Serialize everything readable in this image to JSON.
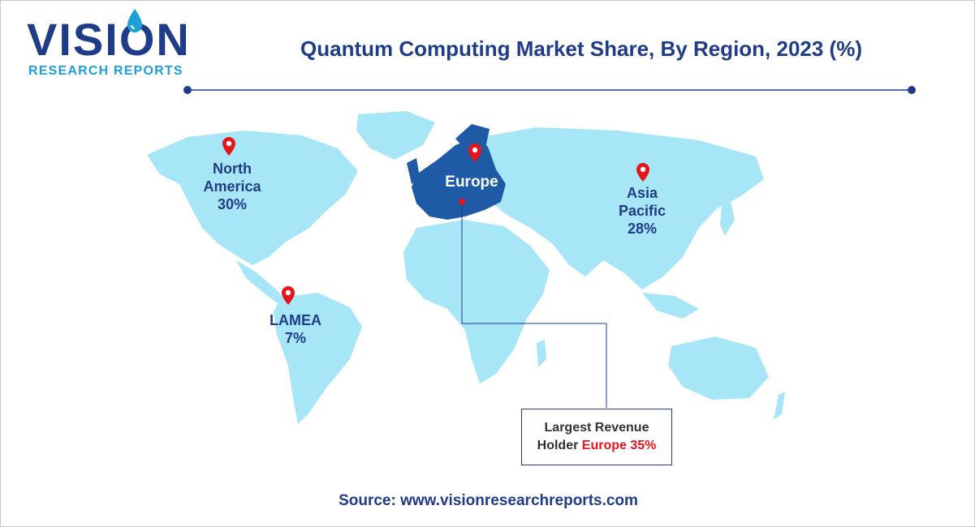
{
  "brand": {
    "name": "VISION",
    "tagline": "RESEARCH REPORTS",
    "primary_color": "#1f3c88",
    "accent_color": "#1f9fd8"
  },
  "title": "Quantum Computing Market Share, By Region, 2023 (%)",
  "map": {
    "land_color": "#a6e6f7",
    "highlight_color": "#1f5aa6",
    "pin_color": "#e8141b",
    "pin_icon": "map-pin-icon",
    "regions": [
      {
        "name": "North America",
        "line1": "North",
        "line2": "America",
        "share": "30%"
      },
      {
        "name": "Europe",
        "line1": "Europe",
        "share": "35%"
      },
      {
        "name": "Asia Pacific",
        "line1": "Asia",
        "line2": "Pacific",
        "share": "28%"
      },
      {
        "name": "LAMEA",
        "line1": "LAMEA",
        "share": "7%"
      }
    ]
  },
  "callout": {
    "line1": "Largest Revenue",
    "line2_prefix": "Holder",
    "highlight": "Europe 35%"
  },
  "source": "Source: www.visionresearchreports.com"
}
